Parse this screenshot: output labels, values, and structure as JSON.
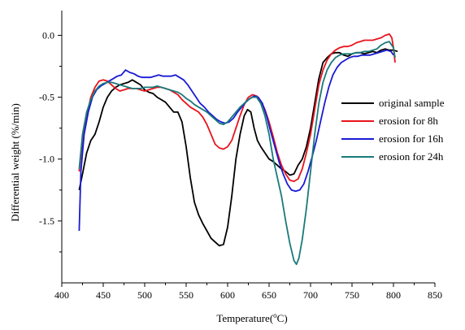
{
  "chart_data": {
    "type": "line",
    "title": "",
    "xlabel": "Temperature",
    "xlabel_unit": "(°C)",
    "ylabel": "Differential weight (%/min)",
    "xlim": [
      400,
      850
    ],
    "ylim": [
      -2.0,
      0.2
    ],
    "xticks": [
      "400",
      "450",
      "500",
      "550",
      "600",
      "650",
      "700",
      "750",
      "800",
      "850"
    ],
    "yticks": [
      "0.0",
      "-0.5",
      "-1.0",
      "-1.5"
    ],
    "grid": false,
    "legend_position": "right",
    "series": [
      {
        "name": "original sample",
        "color": "#000000",
        "points": [
          [
            421,
            -1.25
          ],
          [
            425,
            -1.12
          ],
          [
            430,
            -0.95
          ],
          [
            435,
            -0.85
          ],
          [
            440,
            -0.8
          ],
          [
            445,
            -0.7
          ],
          [
            450,
            -0.58
          ],
          [
            455,
            -0.5
          ],
          [
            460,
            -0.45
          ],
          [
            465,
            -0.42
          ],
          [
            470,
            -0.4
          ],
          [
            475,
            -0.39
          ],
          [
            480,
            -0.38
          ],
          [
            485,
            -0.36
          ],
          [
            490,
            -0.38
          ],
          [
            495,
            -0.4
          ],
          [
            500,
            -0.44
          ],
          [
            505,
            -0.46
          ],
          [
            510,
            -0.47
          ],
          [
            515,
            -0.5
          ],
          [
            520,
            -0.52
          ],
          [
            525,
            -0.54
          ],
          [
            530,
            -0.58
          ],
          [
            535,
            -0.62
          ],
          [
            540,
            -0.62
          ],
          [
            545,
            -0.7
          ],
          [
            550,
            -0.9
          ],
          [
            555,
            -1.15
          ],
          [
            560,
            -1.35
          ],
          [
            565,
            -1.45
          ],
          [
            570,
            -1.52
          ],
          [
            575,
            -1.58
          ],
          [
            580,
            -1.64
          ],
          [
            585,
            -1.67
          ],
          [
            590,
            -1.7
          ],
          [
            595,
            -1.69
          ],
          [
            600,
            -1.55
          ],
          [
            605,
            -1.3
          ],
          [
            610,
            -1.0
          ],
          [
            615,
            -0.8
          ],
          [
            620,
            -0.65
          ],
          [
            624,
            -0.6
          ],
          [
            628,
            -0.62
          ],
          [
            632,
            -0.75
          ],
          [
            636,
            -0.85
          ],
          [
            640,
            -0.9
          ],
          [
            645,
            -0.95
          ],
          [
            650,
            -1.0
          ],
          [
            655,
            -1.02
          ],
          [
            660,
            -1.05
          ],
          [
            665,
            -1.08
          ],
          [
            670,
            -1.1
          ],
          [
            675,
            -1.13
          ],
          [
            680,
            -1.12
          ],
          [
            685,
            -1.05
          ],
          [
            690,
            -1.0
          ],
          [
            695,
            -0.9
          ],
          [
            700,
            -0.75
          ],
          [
            705,
            -0.55
          ],
          [
            710,
            -0.35
          ],
          [
            715,
            -0.22
          ],
          [
            720,
            -0.18
          ],
          [
            725,
            -0.15
          ],
          [
            730,
            -0.14
          ],
          [
            735,
            -0.14
          ],
          [
            740,
            -0.16
          ],
          [
            745,
            -0.17
          ],
          [
            750,
            -0.15
          ],
          [
            755,
            -0.14
          ],
          [
            760,
            -0.14
          ],
          [
            765,
            -0.15
          ],
          [
            770,
            -0.14
          ],
          [
            775,
            -0.13
          ],
          [
            780,
            -0.14
          ],
          [
            785,
            -0.12
          ],
          [
            790,
            -0.11
          ],
          [
            795,
            -0.12
          ],
          [
            800,
            -0.12
          ],
          [
            805,
            -0.13
          ]
        ]
      },
      {
        "name": "erosion for 8h",
        "color": "#e8141c",
        "points": [
          [
            421,
            -1.1
          ],
          [
            425,
            -0.85
          ],
          [
            430,
            -0.65
          ],
          [
            435,
            -0.5
          ],
          [
            440,
            -0.42
          ],
          [
            445,
            -0.37
          ],
          [
            450,
            -0.36
          ],
          [
            455,
            -0.37
          ],
          [
            460,
            -0.4
          ],
          [
            465,
            -0.43
          ],
          [
            470,
            -0.45
          ],
          [
            475,
            -0.44
          ],
          [
            480,
            -0.43
          ],
          [
            485,
            -0.43
          ],
          [
            490,
            -0.43
          ],
          [
            495,
            -0.44
          ],
          [
            500,
            -0.45
          ],
          [
            505,
            -0.44
          ],
          [
            510,
            -0.43
          ],
          [
            515,
            -0.42
          ],
          [
            520,
            -0.42
          ],
          [
            525,
            -0.43
          ],
          [
            530,
            -0.44
          ],
          [
            535,
            -0.46
          ],
          [
            540,
            -0.48
          ],
          [
            545,
            -0.52
          ],
          [
            550,
            -0.55
          ],
          [
            555,
            -0.58
          ],
          [
            560,
            -0.6
          ],
          [
            565,
            -0.62
          ],
          [
            570,
            -0.66
          ],
          [
            575,
            -0.72
          ],
          [
            580,
            -0.8
          ],
          [
            585,
            -0.88
          ],
          [
            590,
            -0.91
          ],
          [
            595,
            -0.92
          ],
          [
            600,
            -0.9
          ],
          [
            605,
            -0.85
          ],
          [
            610,
            -0.75
          ],
          [
            615,
            -0.65
          ],
          [
            620,
            -0.56
          ],
          [
            625,
            -0.5
          ],
          [
            630,
            -0.48
          ],
          [
            635,
            -0.49
          ],
          [
            640,
            -0.53
          ],
          [
            645,
            -0.6
          ],
          [
            650,
            -0.7
          ],
          [
            655,
            -0.82
          ],
          [
            660,
            -0.95
          ],
          [
            665,
            -1.05
          ],
          [
            670,
            -1.12
          ],
          [
            675,
            -1.17
          ],
          [
            680,
            -1.18
          ],
          [
            685,
            -1.16
          ],
          [
            690,
            -1.08
          ],
          [
            695,
            -0.95
          ],
          [
            700,
            -0.8
          ],
          [
            705,
            -0.6
          ],
          [
            710,
            -0.4
          ],
          [
            715,
            -0.28
          ],
          [
            720,
            -0.2
          ],
          [
            725,
            -0.15
          ],
          [
            730,
            -0.12
          ],
          [
            735,
            -0.1
          ],
          [
            740,
            -0.09
          ],
          [
            745,
            -0.09
          ],
          [
            750,
            -0.08
          ],
          [
            755,
            -0.06
          ],
          [
            760,
            -0.05
          ],
          [
            765,
            -0.04
          ],
          [
            770,
            -0.04
          ],
          [
            775,
            -0.04
          ],
          [
            780,
            -0.03
          ],
          [
            785,
            -0.02
          ],
          [
            790,
            0.0
          ],
          [
            795,
            0.01
          ],
          [
            798,
            -0.02
          ],
          [
            800,
            -0.1
          ],
          [
            802,
            -0.22
          ]
        ]
      },
      {
        "name": "erosion for 16h",
        "color": "#1a1ad6",
        "points": [
          [
            421,
            -1.58
          ],
          [
            423,
            -1.1
          ],
          [
            427,
            -0.8
          ],
          [
            432,
            -0.62
          ],
          [
            437,
            -0.5
          ],
          [
            442,
            -0.44
          ],
          [
            447,
            -0.41
          ],
          [
            452,
            -0.39
          ],
          [
            457,
            -0.37
          ],
          [
            462,
            -0.35
          ],
          [
            467,
            -0.33
          ],
          [
            472,
            -0.32
          ],
          [
            477,
            -0.28
          ],
          [
            482,
            -0.3
          ],
          [
            487,
            -0.31
          ],
          [
            492,
            -0.33
          ],
          [
            497,
            -0.34
          ],
          [
            502,
            -0.34
          ],
          [
            507,
            -0.34
          ],
          [
            512,
            -0.33
          ],
          [
            517,
            -0.32
          ],
          [
            522,
            -0.33
          ],
          [
            527,
            -0.33
          ],
          [
            532,
            -0.33
          ],
          [
            537,
            -0.32
          ],
          [
            542,
            -0.34
          ],
          [
            547,
            -0.36
          ],
          [
            552,
            -0.4
          ],
          [
            557,
            -0.45
          ],
          [
            562,
            -0.5
          ],
          [
            567,
            -0.55
          ],
          [
            572,
            -0.58
          ],
          [
            577,
            -0.62
          ],
          [
            582,
            -0.65
          ],
          [
            587,
            -0.68
          ],
          [
            592,
            -0.7
          ],
          [
            597,
            -0.71
          ],
          [
            602,
            -0.7
          ],
          [
            607,
            -0.67
          ],
          [
            612,
            -0.62
          ],
          [
            617,
            -0.58
          ],
          [
            622,
            -0.54
          ],
          [
            627,
            -0.51
          ],
          [
            632,
            -0.49
          ],
          [
            637,
            -0.5
          ],
          [
            642,
            -0.55
          ],
          [
            647,
            -0.65
          ],
          [
            652,
            -0.78
          ],
          [
            657,
            -0.9
          ],
          [
            662,
            -1.02
          ],
          [
            667,
            -1.12
          ],
          [
            672,
            -1.2
          ],
          [
            677,
            -1.25
          ],
          [
            682,
            -1.26
          ],
          [
            687,
            -1.25
          ],
          [
            692,
            -1.2
          ],
          [
            697,
            -1.1
          ],
          [
            702,
            -0.98
          ],
          [
            707,
            -0.85
          ],
          [
            712,
            -0.7
          ],
          [
            717,
            -0.55
          ],
          [
            722,
            -0.42
          ],
          [
            727,
            -0.32
          ],
          [
            732,
            -0.26
          ],
          [
            737,
            -0.22
          ],
          [
            742,
            -0.2
          ],
          [
            747,
            -0.18
          ],
          [
            752,
            -0.17
          ],
          [
            757,
            -0.17
          ],
          [
            762,
            -0.16
          ],
          [
            767,
            -0.16
          ],
          [
            772,
            -0.16
          ],
          [
            777,
            -0.15
          ],
          [
            782,
            -0.14
          ],
          [
            787,
            -0.13
          ],
          [
            792,
            -0.12
          ],
          [
            797,
            -0.13
          ],
          [
            800,
            -0.16
          ]
        ]
      },
      {
        "name": "erosion for 24h",
        "color": "#1a7a7a",
        "points": [
          [
            421,
            -1.08
          ],
          [
            425,
            -0.8
          ],
          [
            430,
            -0.62
          ],
          [
            435,
            -0.52
          ],
          [
            440,
            -0.45
          ],
          [
            445,
            -0.41
          ],
          [
            450,
            -0.39
          ],
          [
            455,
            -0.38
          ],
          [
            460,
            -0.38
          ],
          [
            465,
            -0.39
          ],
          [
            470,
            -0.4
          ],
          [
            475,
            -0.41
          ],
          [
            480,
            -0.42
          ],
          [
            485,
            -0.43
          ],
          [
            490,
            -0.43
          ],
          [
            495,
            -0.43
          ],
          [
            500,
            -0.42
          ],
          [
            505,
            -0.42
          ],
          [
            510,
            -0.42
          ],
          [
            515,
            -0.41
          ],
          [
            520,
            -0.42
          ],
          [
            525,
            -0.43
          ],
          [
            530,
            -0.44
          ],
          [
            535,
            -0.45
          ],
          [
            540,
            -0.46
          ],
          [
            545,
            -0.48
          ],
          [
            550,
            -0.51
          ],
          [
            555,
            -0.53
          ],
          [
            560,
            -0.56
          ],
          [
            565,
            -0.58
          ],
          [
            570,
            -0.6
          ],
          [
            575,
            -0.62
          ],
          [
            580,
            -0.65
          ],
          [
            585,
            -0.68
          ],
          [
            590,
            -0.71
          ],
          [
            595,
            -0.72
          ],
          [
            600,
            -0.7
          ],
          [
            605,
            -0.66
          ],
          [
            610,
            -0.62
          ],
          [
            615,
            -0.58
          ],
          [
            620,
            -0.55
          ],
          [
            625,
            -0.52
          ],
          [
            630,
            -0.5
          ],
          [
            635,
            -0.5
          ],
          [
            640,
            -0.55
          ],
          [
            645,
            -0.65
          ],
          [
            650,
            -0.8
          ],
          [
            655,
            -1.0
          ],
          [
            660,
            -1.15
          ],
          [
            665,
            -1.3
          ],
          [
            670,
            -1.5
          ],
          [
            675,
            -1.68
          ],
          [
            680,
            -1.82
          ],
          [
            683,
            -1.85
          ],
          [
            686,
            -1.8
          ],
          [
            690,
            -1.65
          ],
          [
            695,
            -1.4
          ],
          [
            700,
            -1.1
          ],
          [
            705,
            -0.8
          ],
          [
            710,
            -0.55
          ],
          [
            715,
            -0.38
          ],
          [
            720,
            -0.28
          ],
          [
            725,
            -0.22
          ],
          [
            730,
            -0.18
          ],
          [
            735,
            -0.16
          ],
          [
            740,
            -0.15
          ],
          [
            745,
            -0.15
          ],
          [
            750,
            -0.15
          ],
          [
            755,
            -0.14
          ],
          [
            760,
            -0.14
          ],
          [
            765,
            -0.13
          ],
          [
            770,
            -0.13
          ],
          [
            775,
            -0.12
          ],
          [
            780,
            -0.11
          ],
          [
            785,
            -0.08
          ],
          [
            790,
            -0.06
          ],
          [
            795,
            -0.05
          ],
          [
            800,
            -0.1
          ],
          [
            802,
            -0.18
          ]
        ]
      }
    ]
  }
}
